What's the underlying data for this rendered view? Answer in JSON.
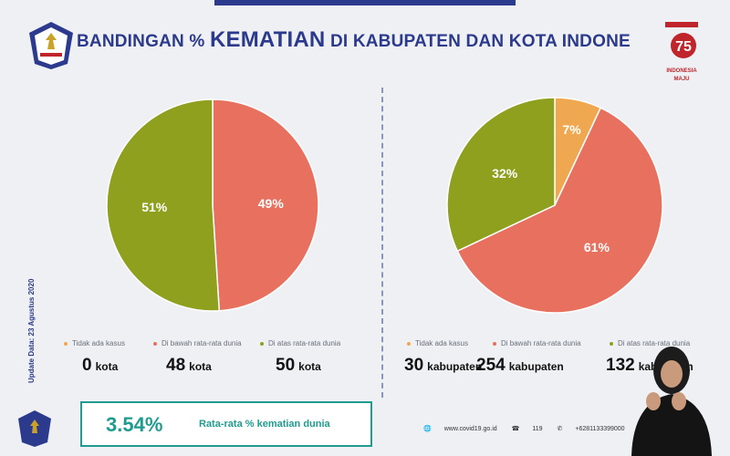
{
  "header": {
    "title_prefix": "BANDINGAN %",
    "title_emph": "KEMATIAN",
    "title_suffix": "DI KABUPATEN DAN KOTA INDONE",
    "brand_text_1": "INDONESIA",
    "brand_text_2": "MAJU"
  },
  "side_note": "Update Data: 23 Agustus 2020",
  "colors": {
    "none": "#f0a850",
    "below": "#e8705f",
    "above": "#8ea01e",
    "accent": "#1f9c8f",
    "title": "#2b3a8c"
  },
  "chart_data": [
    {
      "type": "pie",
      "title": "",
      "slices": [
        {
          "label": "Tidak ada kasus",
          "value": 0,
          "display": "",
          "color": "#f0a850"
        },
        {
          "label": "Di bawah rata-rata dunia",
          "value": 49,
          "display": "49%",
          "color": "#e8705f"
        },
        {
          "label": "Di atas rata-rata dunia",
          "value": 51,
          "display": "51%",
          "color": "#8ea01e"
        }
      ],
      "counts": [
        {
          "num": "0",
          "unit": "kota"
        },
        {
          "num": "48",
          "unit": "kota"
        },
        {
          "num": "50",
          "unit": "kota"
        }
      ],
      "legend_placement": "bottom"
    },
    {
      "type": "pie",
      "title": "",
      "slices": [
        {
          "label": "Tidak ada kasus",
          "value": 7,
          "display": "7%",
          "color": "#f0a850"
        },
        {
          "label": "Di bawah rata-rata dunia",
          "value": 61,
          "display": "61%",
          "color": "#e8705f"
        },
        {
          "label": "Di atas rata-rata dunia",
          "value": 32,
          "display": "32%",
          "color": "#8ea01e"
        }
      ],
      "counts": [
        {
          "num": "30",
          "unit": "kabupaten"
        },
        {
          "num": "254",
          "unit": "kabupaten"
        },
        {
          "num": "132",
          "unit": "kabupaten"
        }
      ],
      "legend_placement": "bottom"
    }
  ],
  "world_avg": {
    "value": "3.54%",
    "label": "Rata-rata % kematian dunia"
  },
  "footer": {
    "website": "www.covid19.go.id",
    "hotline": "119",
    "whatsapp": "+6281133399000"
  }
}
